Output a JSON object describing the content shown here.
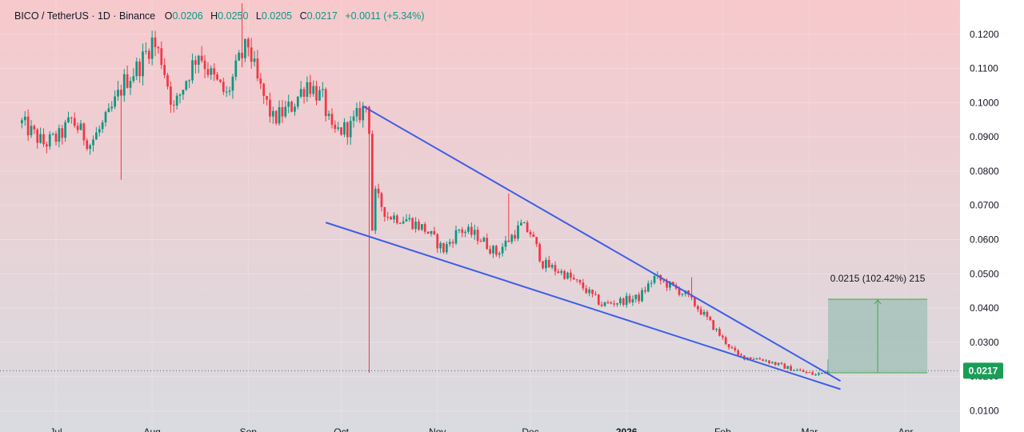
{
  "header": {
    "symbol": "BICO / TetherUS · 1D · Binance",
    "o_label": "O",
    "o_value": "0.0206",
    "h_label": "H",
    "h_value": "0.0250",
    "l_label": "L",
    "l_value": "0.0205",
    "c_label": "C",
    "c_value": "0.0217",
    "change": "+0.0011 (+5.34%)"
  },
  "colors": {
    "up": "#089981",
    "down": "#f23645",
    "trendline": "#3d5ee6",
    "bg_top": "#f7c9cc",
    "bg_bottom": "#d9dbe0",
    "measure_fill": "#9dbfb5",
    "measure_line": "#46a84f",
    "price_tag": "#1a9d57"
  },
  "chart_data": {
    "type": "candlestick",
    "title": "BICO / TetherUS · 1D · Binance",
    "price_axis_labels": [
      "0.1200",
      "0.1100",
      "0.1000",
      "0.0900",
      "0.0800",
      "0.0700",
      "0.0600",
      "0.0500",
      "0.0400",
      "0.0300",
      "0.0200",
      "0.0100"
    ],
    "ylim": [
      0.0038,
      0.13
    ],
    "time_axis_labels": [
      "Jul",
      "Aug",
      "Sep",
      "Oct",
      "Nov",
      "Dec",
      "2026",
      "Feb",
      "Mar",
      "Apr"
    ],
    "time_axis_dates": [
      "2025-07-01",
      "2025-08-01",
      "2025-09-01",
      "2025-10-01",
      "2025-11-01",
      "2025-12-01",
      "2026-01-01",
      "2026-02-01",
      "2026-03-01",
      "2026-04-01"
    ],
    "first_candle_date": "2025-06-20",
    "last_candle_date": "2026-03-07",
    "close_path": [
      [
        "2025-06-20",
        0.094
      ],
      [
        "2025-06-27",
        0.088
      ],
      [
        "2025-07-02",
        0.09
      ],
      [
        "2025-07-06",
        0.095
      ],
      [
        "2025-07-12",
        0.088
      ],
      [
        "2025-07-18",
        0.096
      ],
      [
        "2025-07-23",
        0.106
      ],
      [
        "2025-07-28",
        0.111
      ],
      [
        "2025-08-01",
        0.118
      ],
      [
        "2025-08-04",
        0.113
      ],
      [
        "2025-08-08",
        0.098
      ],
      [
        "2025-08-12",
        0.107
      ],
      [
        "2025-08-16",
        0.115
      ],
      [
        "2025-08-20",
        0.108
      ],
      [
        "2025-08-25",
        0.102
      ],
      [
        "2025-08-29",
        0.112
      ],
      [
        "2025-09-01",
        0.117
      ],
      [
        "2025-09-04",
        0.106
      ],
      [
        "2025-09-09",
        0.095
      ],
      [
        "2025-09-15",
        0.099
      ],
      [
        "2025-09-20",
        0.106
      ],
      [
        "2025-09-25",
        0.101
      ],
      [
        "2025-09-28",
        0.091
      ],
      [
        "2025-10-04",
        0.093
      ],
      [
        "2025-10-07",
        0.097
      ],
      [
        "2025-10-09",
        0.099
      ],
      [
        "2025-10-10",
        0.093
      ],
      [
        "2025-10-11",
        0.063
      ],
      [
        "2025-10-12",
        0.073
      ],
      [
        "2025-10-16",
        0.067
      ],
      [
        "2025-10-22",
        0.066
      ],
      [
        "2025-10-28",
        0.063
      ],
      [
        "2025-11-03",
        0.057
      ],
      [
        "2025-11-08",
        0.063
      ],
      [
        "2025-11-14",
        0.061
      ],
      [
        "2025-11-20",
        0.056
      ],
      [
        "2025-11-25",
        0.061
      ],
      [
        "2025-11-28",
        0.064
      ],
      [
        "2025-12-01",
        0.062
      ],
      [
        "2025-12-05",
        0.053
      ],
      [
        "2025-12-12",
        0.05
      ],
      [
        "2025-12-18",
        0.046
      ],
      [
        "2025-12-24",
        0.041
      ],
      [
        "2025-12-30",
        0.042
      ],
      [
        "2026-01-05",
        0.043
      ],
      [
        "2026-01-10",
        0.049
      ],
      [
        "2026-01-14",
        0.047
      ],
      [
        "2026-01-20",
        0.044
      ],
      [
        "2026-01-26",
        0.038
      ],
      [
        "2026-02-01",
        0.031
      ],
      [
        "2026-02-06",
        0.026
      ],
      [
        "2026-02-14",
        0.025
      ],
      [
        "2026-02-22",
        0.0225
      ],
      [
        "2026-03-03",
        0.0205
      ],
      [
        "2026-03-07",
        0.0217
      ]
    ],
    "last_candle": {
      "date": "2026-03-07",
      "o": 0.0206,
      "h": 0.025,
      "l": 0.0205,
      "c": 0.0217
    },
    "wicks": [
      {
        "date": "2025-10-10",
        "low": 0.0211
      },
      {
        "date": "2025-11-24",
        "high": 0.0735
      },
      {
        "date": "2026-01-22",
        "high": 0.049
      },
      {
        "date": "2025-07-22",
        "low": 0.0775
      },
      {
        "date": "2025-08-30",
        "high": 0.129
      }
    ],
    "trendlines": [
      {
        "name": "upper",
        "from": [
          "2025-10-08",
          0.099
        ],
        "to": [
          "2026-03-11",
          0.0187
        ]
      },
      {
        "name": "lower",
        "from": [
          "2025-09-26",
          0.065
        ],
        "to": [
          "2026-03-11",
          0.0163
        ]
      }
    ],
    "measure": {
      "from": [
        "2026-03-07",
        0.0211
      ],
      "to": [
        "2026-04-08",
        0.0426
      ],
      "label": "0.0215 (102.42%) 215"
    },
    "current_price": {
      "value": 0.0217,
      "label": "0.0217"
    }
  }
}
